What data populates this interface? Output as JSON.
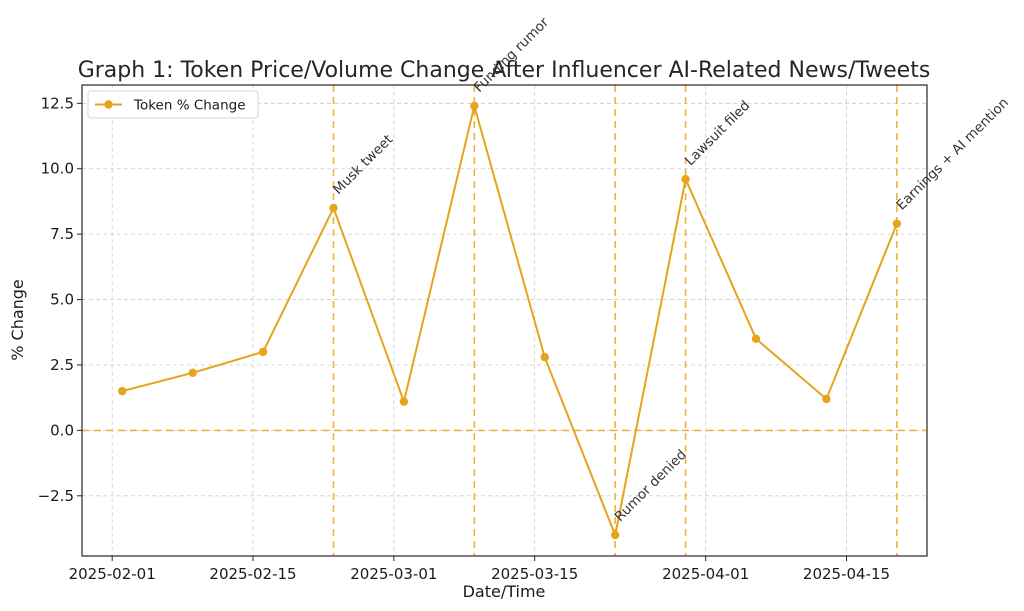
{
  "chart_data": {
    "type": "line",
    "title": "Graph 1: Token Price/Volume Change After Influencer AI-Related News/Tweets",
    "xlabel": "Date/Time",
    "ylabel": "% Change",
    "x": [
      "2025-02-02",
      "2025-02-09",
      "2025-02-16",
      "2025-02-23",
      "2025-03-02",
      "2025-03-09",
      "2025-03-16",
      "2025-03-23",
      "2025-03-30",
      "2025-04-06",
      "2025-04-13",
      "2025-04-20"
    ],
    "series": [
      {
        "name": "Token % Change",
        "values": [
          1.5,
          2.2,
          3.0,
          8.5,
          1.1,
          12.4,
          2.8,
          -4.0,
          9.6,
          3.5,
          1.2,
          7.9
        ],
        "color": "#e5a41b"
      }
    ],
    "xlim": [
      "2025-01-29",
      "2025-04-23"
    ],
    "ylim": [
      -4.8,
      13.2
    ],
    "xticks": [
      "2025-02-01",
      "2025-02-15",
      "2025-03-01",
      "2025-03-15",
      "2025-04-01",
      "2025-04-15"
    ],
    "yticks": [
      -2.5,
      0.0,
      2.5,
      5.0,
      7.5,
      10.0,
      12.5
    ],
    "ytick_labels": [
      "−2.5",
      "0.0",
      "2.5",
      "5.0",
      "7.5",
      "10.0",
      "12.5"
    ],
    "annotations": [
      {
        "date": "2025-02-23",
        "label": "Musk tweet"
      },
      {
        "date": "2025-03-09",
        "label": "Funding rumor"
      },
      {
        "date": "2025-03-23",
        "label": "Rumor denied"
      },
      {
        "date": "2025-03-30",
        "label": "Lawsuit filed"
      },
      {
        "date": "2025-04-20",
        "label": "Earnings + AI mention"
      }
    ],
    "reference_line": {
      "y": 0.0,
      "style": "dashed",
      "color": "#f0b23a"
    },
    "vline_color": "#f0b23a",
    "grid": true,
    "legend_position": "top-left"
  }
}
